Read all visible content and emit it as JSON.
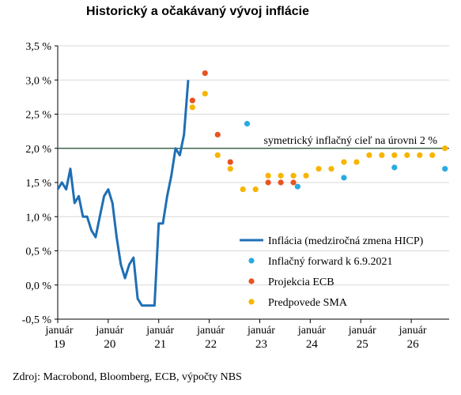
{
  "chart_data": {
    "type": "line",
    "title": "Historický a očakávaný vývoj inflácie",
    "source": "Zdroj: Macrobond, Bloomberg, ECB, výpočty NBS",
    "ylim": [
      -0.5,
      3.5
    ],
    "xlim": [
      2019.0,
      2026.75
    ],
    "y_ticks": [
      {
        "value": 3.5,
        "label": "3,5 %"
      },
      {
        "value": 3.0,
        "label": "3,0 %"
      },
      {
        "value": 2.5,
        "label": "2,5 %"
      },
      {
        "value": 2.0,
        "label": "2,0 %"
      },
      {
        "value": 1.5,
        "label": "1,5 %"
      },
      {
        "value": 1.0,
        "label": "1,0 %"
      },
      {
        "value": 0.5,
        "label": "0,5 %"
      },
      {
        "value": 0.0,
        "label": "0,0 %"
      },
      {
        "value": -0.5,
        "label": "-0,5 %"
      }
    ],
    "x_ticks": [
      {
        "value": 2019,
        "month": "január",
        "year": "19"
      },
      {
        "value": 2020,
        "month": "január",
        "year": "20"
      },
      {
        "value": 2021,
        "month": "január",
        "year": "21"
      },
      {
        "value": 2022,
        "month": "január",
        "year": "22"
      },
      {
        "value": 2023,
        "month": "január",
        "year": "23"
      },
      {
        "value": 2024,
        "month": "január",
        "year": "24"
      },
      {
        "value": 2025,
        "month": "január",
        "year": "25"
      },
      {
        "value": 2026,
        "month": "január",
        "year": "26"
      }
    ],
    "target": {
      "value": 2.0,
      "label": "symetrický inflačný cieľ na úrovni 2 %",
      "color": "#1e4d2b"
    },
    "series": [
      {
        "name": "Inflácia (medziročná zmena HICP)",
        "style": "line",
        "color": "#1f6fb5",
        "points": [
          [
            2019.0,
            1.4
          ],
          [
            2019.083,
            1.5
          ],
          [
            2019.167,
            1.4
          ],
          [
            2019.25,
            1.7
          ],
          [
            2019.333,
            1.2
          ],
          [
            2019.417,
            1.3
          ],
          [
            2019.5,
            1.0
          ],
          [
            2019.583,
            1.0
          ],
          [
            2019.667,
            0.8
          ],
          [
            2019.75,
            0.7
          ],
          [
            2019.833,
            1.0
          ],
          [
            2019.917,
            1.3
          ],
          [
            2020.0,
            1.4
          ],
          [
            2020.083,
            1.2
          ],
          [
            2020.167,
            0.7
          ],
          [
            2020.25,
            0.3
          ],
          [
            2020.333,
            0.1
          ],
          [
            2020.417,
            0.3
          ],
          [
            2020.5,
            0.4
          ],
          [
            2020.583,
            -0.2
          ],
          [
            2020.667,
            -0.3
          ],
          [
            2020.75,
            -0.3
          ],
          [
            2020.833,
            -0.3
          ],
          [
            2020.917,
            -0.3
          ],
          [
            2021.0,
            0.9
          ],
          [
            2021.083,
            0.9
          ],
          [
            2021.167,
            1.3
          ],
          [
            2021.25,
            1.6
          ],
          [
            2021.333,
            2.0
          ],
          [
            2021.417,
            1.9
          ],
          [
            2021.5,
            2.2
          ],
          [
            2021.583,
            3.0
          ]
        ]
      },
      {
        "name": "Inflačný forward k 6.9.2021",
        "style": "dots",
        "color": "#29abe2",
        "points": [
          [
            2022.75,
            2.36
          ],
          [
            2023.75,
            1.44
          ],
          [
            2024.667,
            1.57
          ],
          [
            2025.667,
            1.72
          ],
          [
            2026.667,
            1.7
          ]
        ]
      },
      {
        "name": "Projekcia ECB",
        "style": "dots",
        "color": "#e8531f",
        "points": [
          [
            2021.667,
            2.7
          ],
          [
            2021.917,
            3.1
          ],
          [
            2022.167,
            2.2
          ],
          [
            2022.417,
            1.8
          ],
          [
            2023.167,
            1.5
          ],
          [
            2023.417,
            1.5
          ],
          [
            2023.667,
            1.5
          ]
        ]
      },
      {
        "name": "Predpovede SMA",
        "style": "dots",
        "color": "#f7b500",
        "points": [
          [
            2021.667,
            2.6
          ],
          [
            2021.917,
            2.8
          ],
          [
            2022.167,
            1.9
          ],
          [
            2022.417,
            1.7
          ],
          [
            2022.667,
            1.4
          ],
          [
            2022.917,
            1.4
          ],
          [
            2023.167,
            1.6
          ],
          [
            2023.417,
            1.6
          ],
          [
            2023.667,
            1.6
          ],
          [
            2023.917,
            1.6
          ],
          [
            2024.167,
            1.7
          ],
          [
            2024.417,
            1.7
          ],
          [
            2024.667,
            1.8
          ],
          [
            2024.917,
            1.8
          ],
          [
            2025.167,
            1.9
          ],
          [
            2025.417,
            1.9
          ],
          [
            2025.667,
            1.9
          ],
          [
            2025.917,
            1.9
          ],
          [
            2026.167,
            1.9
          ],
          [
            2026.417,
            1.9
          ],
          [
            2026.667,
            2.0
          ]
        ]
      }
    ],
    "legend_position": "bottom-right"
  }
}
